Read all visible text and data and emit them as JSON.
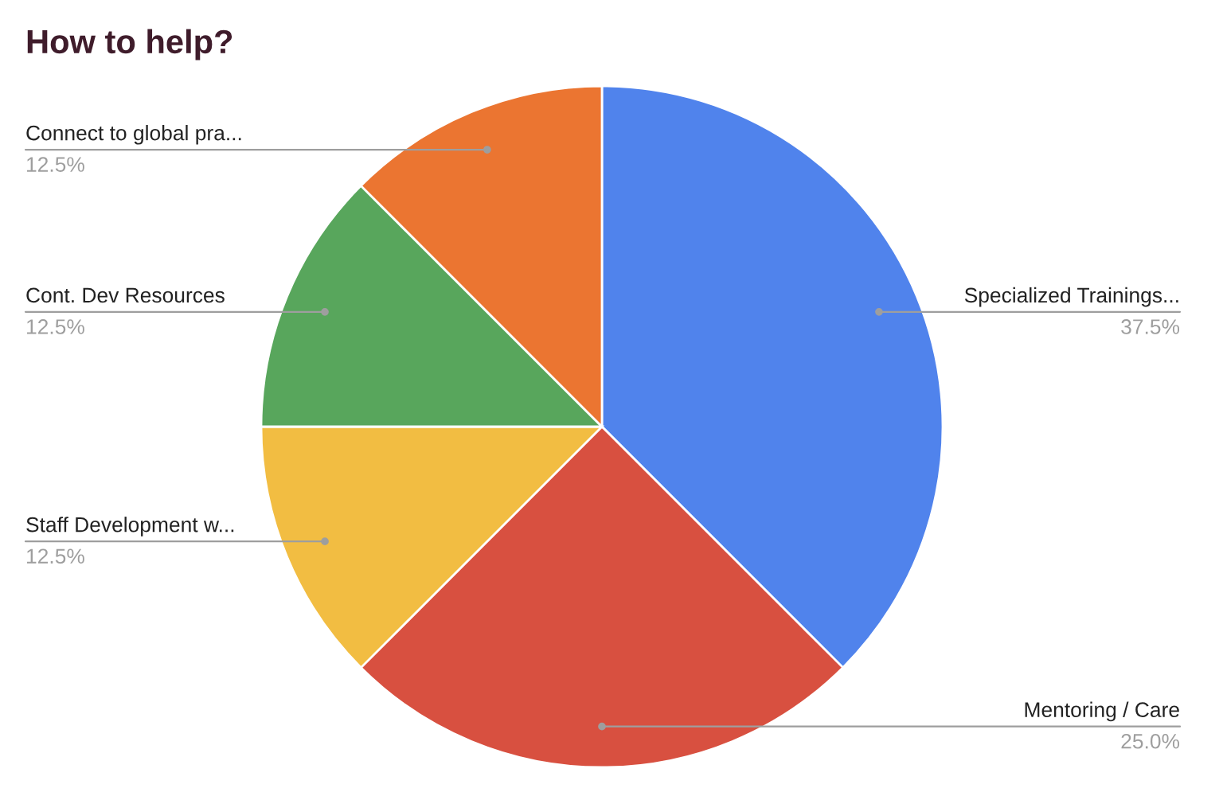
{
  "chart_data": {
    "type": "pie",
    "title": "How to help?",
    "categories": [
      "Specialized Trainings...",
      "Mentoring / Care",
      "Staff Development w...",
      "Cont. Dev Resources",
      "Connect to global pra..."
    ],
    "values": [
      37.5,
      25.0,
      12.5,
      12.5,
      12.5
    ],
    "colors": [
      "#5083ec",
      "#d85040",
      "#f2bd42",
      "#58a65c",
      "#eb7531"
    ],
    "value_labels": [
      "37.5%",
      "25.0%",
      "12.5%",
      "12.5%",
      "12.5%"
    ]
  }
}
